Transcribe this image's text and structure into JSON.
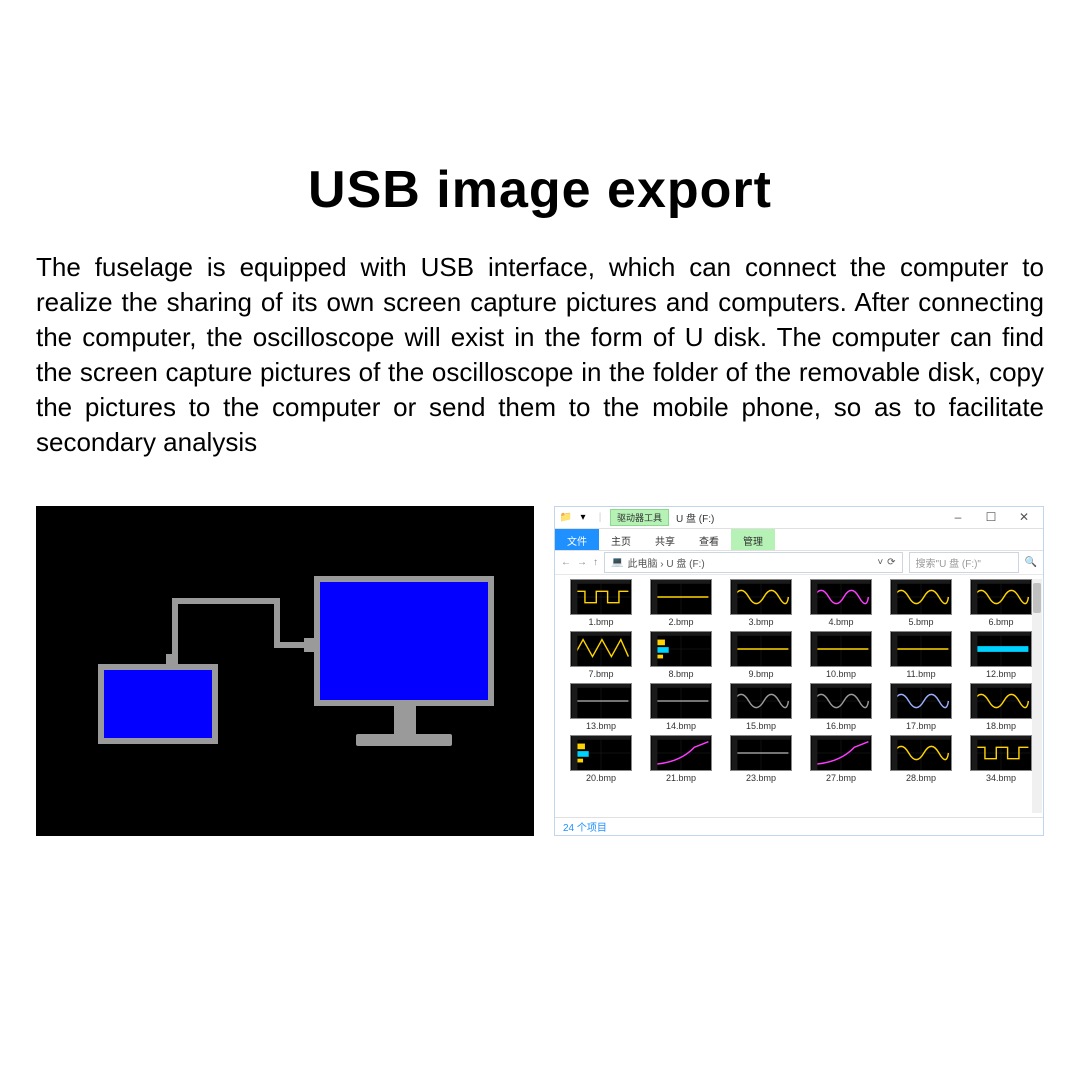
{
  "title": "USB image export",
  "description": "The fuselage is equipped with USB interface, which can connect the computer to realize the sharing of its own screen capture pictures and computers. After connecting the computer, the oscilloscope will exist in the form of U disk. The computer can find the screen capture pictures of the oscilloscope in the folder of the removable disk, copy the pictures to the computer or send them to the mobile phone, so as to facilitate secondary analysis",
  "diagram": {
    "bg": "#000000",
    "frame_color": "#9a9a9a",
    "screen_color": "#0400ff"
  },
  "explorer": {
    "titlebar": {
      "tool_label": "驱动器工具",
      "title": "U 盘 (F:)",
      "min": "–",
      "max": "☐",
      "close": "✕"
    },
    "menu": {
      "file": "文件",
      "home": "主页",
      "share": "共享",
      "view": "查看",
      "manage": "管理"
    },
    "address": {
      "back": "←",
      "fwd": "→",
      "up": "↑",
      "path_prefix": "此电脑 › U 盘 (F:)",
      "refresh": "⟳",
      "search_placeholder": "搜索\"U 盘 (F:)\"",
      "search_icon": "🔍"
    },
    "files": [
      {
        "name": "1.bmp",
        "wave": "square",
        "c": "#ffd400"
      },
      {
        "name": "2.bmp",
        "wave": "line",
        "c": "#ffd400"
      },
      {
        "name": "3.bmp",
        "wave": "sine",
        "c": "#ffd400"
      },
      {
        "name": "4.bmp",
        "wave": "sine",
        "c": "#ff3cff"
      },
      {
        "name": "5.bmp",
        "wave": "sine",
        "c": "#ffd400"
      },
      {
        "name": "6.bmp",
        "wave": "sine",
        "c": "#ffd400"
      },
      {
        "name": "7.bmp",
        "wave": "tri",
        "c": "#ffd400"
      },
      {
        "name": "8.bmp",
        "wave": "bars",
        "c": "#ffd400"
      },
      {
        "name": "9.bmp",
        "wave": "line",
        "c": "#ffd400"
      },
      {
        "name": "10.bmp",
        "wave": "line",
        "c": "#ffd400"
      },
      {
        "name": "11.bmp",
        "wave": "line",
        "c": "#ffd400"
      },
      {
        "name": "12.bmp",
        "wave": "thick",
        "c": "#00d2ff"
      },
      {
        "name": "13.bmp",
        "wave": "line",
        "c": "#9a9a9a"
      },
      {
        "name": "14.bmp",
        "wave": "line",
        "c": "#9a9a9a"
      },
      {
        "name": "15.bmp",
        "wave": "sine",
        "c": "#9a9a9a"
      },
      {
        "name": "16.bmp",
        "wave": "sine",
        "c": "#9a9a9a"
      },
      {
        "name": "17.bmp",
        "wave": "sine",
        "c": "#9ab0ff"
      },
      {
        "name": "18.bmp",
        "wave": "sine",
        "c": "#ffd400"
      },
      {
        "name": "20.bmp",
        "wave": "bars",
        "c": "#ffd400"
      },
      {
        "name": "21.bmp",
        "wave": "rise",
        "c": "#ff3cff"
      },
      {
        "name": "23.bmp",
        "wave": "flat",
        "c": "#9a9a9a"
      },
      {
        "name": "27.bmp",
        "wave": "rise",
        "c": "#ff3cff"
      },
      {
        "name": "28.bmp",
        "wave": "sine",
        "c": "#ffd400"
      },
      {
        "name": "34.bmp",
        "wave": "square",
        "c": "#ffd400"
      }
    ],
    "status": "24 个项目"
  }
}
